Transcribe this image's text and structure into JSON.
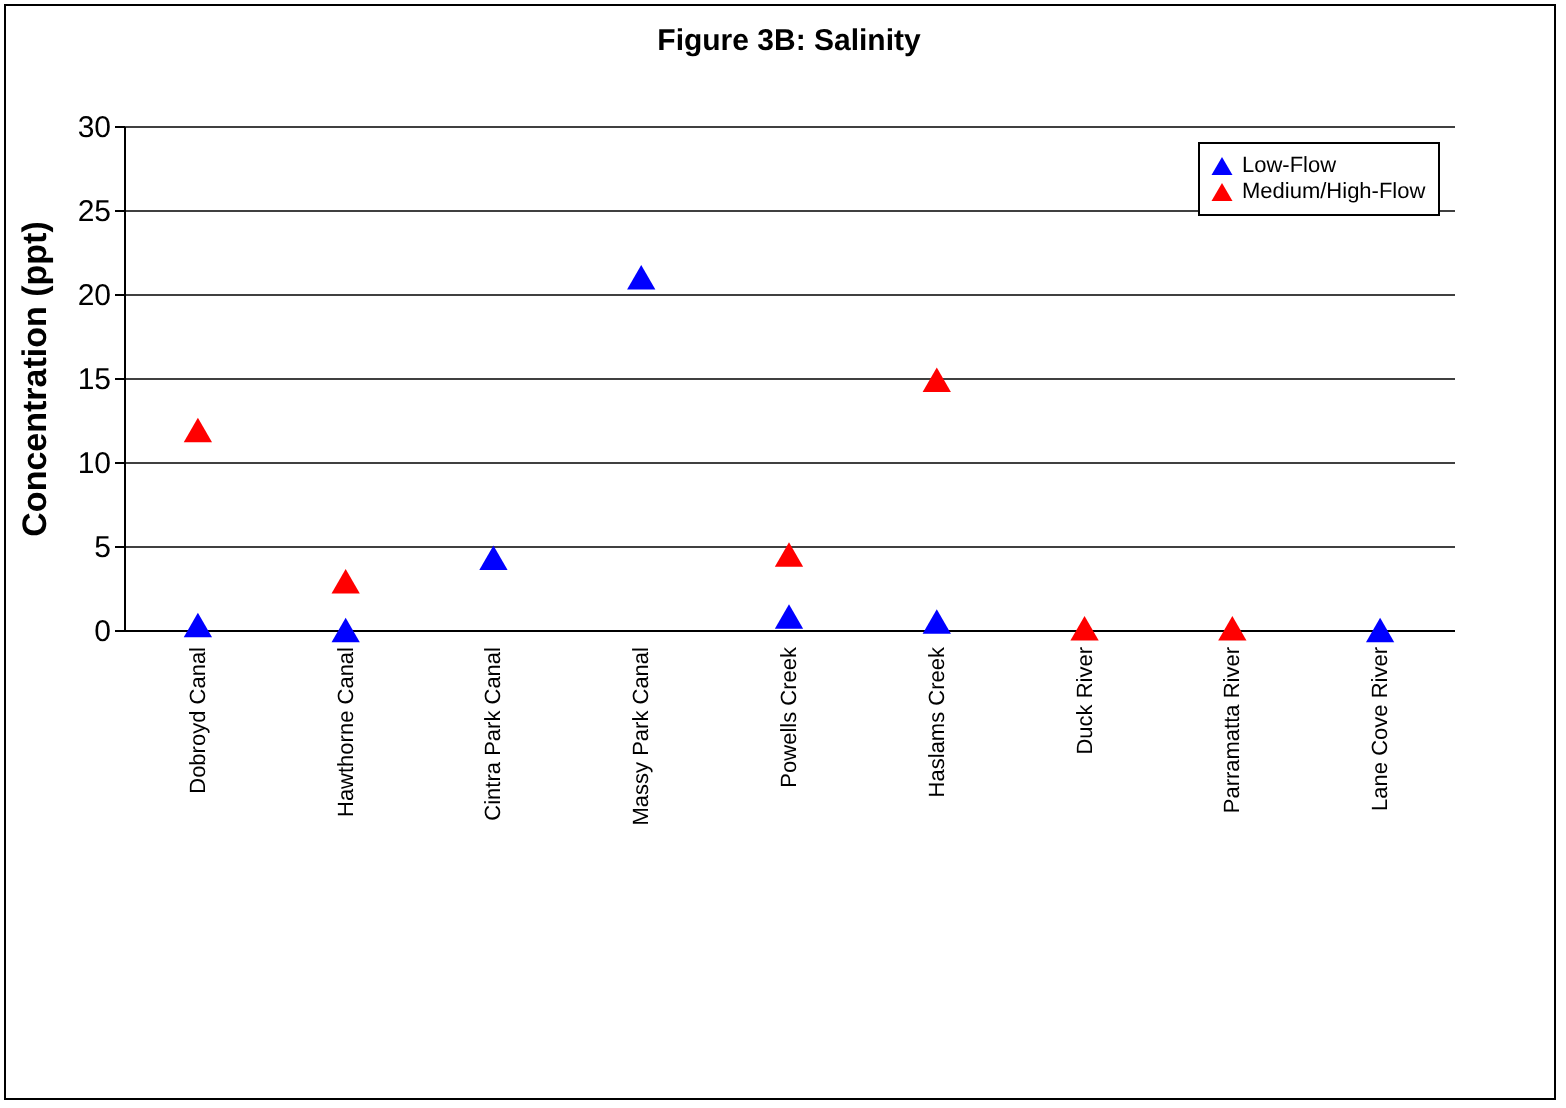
{
  "chart_data": {
    "type": "scatter",
    "title": "Figure 3B: Salinity",
    "ylabel": "Concentration (ppt)",
    "categories": [
      "Dobroyd Canal",
      "Hawthorne Canal",
      "Cintra Park Canal",
      "Massy Park Canal",
      "Powells Creek",
      "Haslams Creek",
      "Duck River",
      "Parramatta River",
      "Lane Cove River"
    ],
    "series": [
      {
        "name": "Low-Flow",
        "color": "#0000ff",
        "values": [
          0.3,
          0.0,
          4.3,
          21.0,
          0.8,
          0.5,
          null,
          null,
          0.0
        ]
      },
      {
        "name": "Medium/High-Flow",
        "color": "#ff0000",
        "values": [
          11.9,
          2.9,
          null,
          null,
          4.5,
          14.9,
          0.1,
          0.1,
          null
        ]
      }
    ],
    "ylim": [
      0,
      30
    ],
    "yticks": [
      0,
      5,
      10,
      15,
      20,
      25,
      30
    ],
    "grid": "y",
    "legend": "top right",
    "marker": "triangle"
  }
}
